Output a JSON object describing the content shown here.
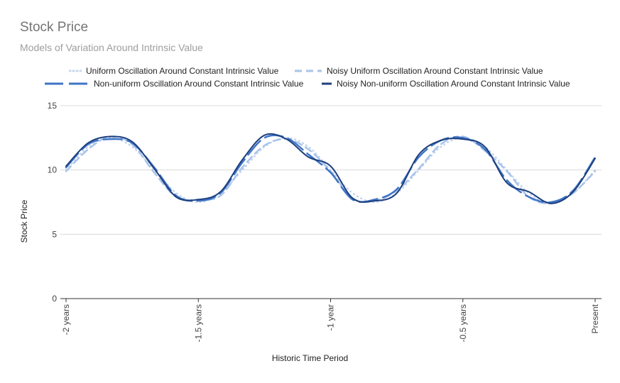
{
  "chart_data": {
    "type": "line",
    "title": "Stock Price",
    "subtitle": "Models of Variation Around Intrinsic Value",
    "xlabel": "Historic Time Period",
    "ylabel": "Stock Price",
    "ylim": [
      0,
      15
    ],
    "yticks": [
      "0",
      "5",
      "10",
      "15"
    ],
    "xticks": [
      "-2 years",
      "-1.5 years",
      "-1 year",
      "-0.5 years",
      "Present"
    ],
    "grid": true,
    "legend_position": "top",
    "x": [
      0,
      0.0417,
      0.0833,
      0.125,
      0.1667,
      0.2083,
      0.25,
      0.2917,
      0.3333,
      0.375,
      0.4167,
      0.4583,
      0.5,
      0.5417,
      0.5833,
      0.625,
      0.6667,
      0.7083,
      0.75,
      0.7917,
      0.8333,
      0.875,
      0.9167,
      0.9583,
      1.0
    ],
    "series": [
      {
        "name": "Uniform Oscillation Around Constant Intrinsic Value",
        "color": "#c6d6ee",
        "dash": "dot",
        "values": [
          10.0,
          11.8,
          12.5,
          11.8,
          10.0,
          8.2,
          7.5,
          8.2,
          10.0,
          11.8,
          12.5,
          11.8,
          10.0,
          8.2,
          7.5,
          8.2,
          10.0,
          11.8,
          12.5,
          11.8,
          10.0,
          8.2,
          7.5,
          8.2,
          10.0
        ]
      },
      {
        "name": "Noisy Uniform Oscillation Around Constant Intrinsic Value",
        "color": "#a9c3ea",
        "dash": "dash",
        "values": [
          9.9,
          11.6,
          12.6,
          12.0,
          9.8,
          7.9,
          7.7,
          8.0,
          10.2,
          11.9,
          12.4,
          11.6,
          9.9,
          7.8,
          7.6,
          8.4,
          10.1,
          12.0,
          12.6,
          11.5,
          9.9,
          7.9,
          7.4,
          8.2,
          9.9
        ]
      },
      {
        "name": "Non-uniform Oscillation Around Constant Intrinsic Value",
        "color": "#3f74c6",
        "dash": "longdash",
        "values": [
          10.2,
          12.0,
          12.4,
          12.1,
          10.2,
          8.0,
          7.6,
          8.2,
          10.6,
          12.5,
          12.5,
          11.2,
          9.8,
          7.7,
          7.7,
          8.5,
          11.0,
          12.3,
          12.5,
          11.6,
          9.2,
          7.9,
          7.5,
          8.4,
          11.0
        ]
      },
      {
        "name": "Noisy Non-uniform Oscillation Around Constant Intrinsic Value",
        "color": "#1c3f7d",
        "dash": "solid",
        "values": [
          10.3,
          12.1,
          12.6,
          12.2,
          10.1,
          7.9,
          7.7,
          8.3,
          10.8,
          12.7,
          12.4,
          11.0,
          10.3,
          7.8,
          7.6,
          8.2,
          11.2,
          12.3,
          12.4,
          11.8,
          9.0,
          8.3,
          7.4,
          8.3,
          10.9
        ]
      }
    ]
  }
}
